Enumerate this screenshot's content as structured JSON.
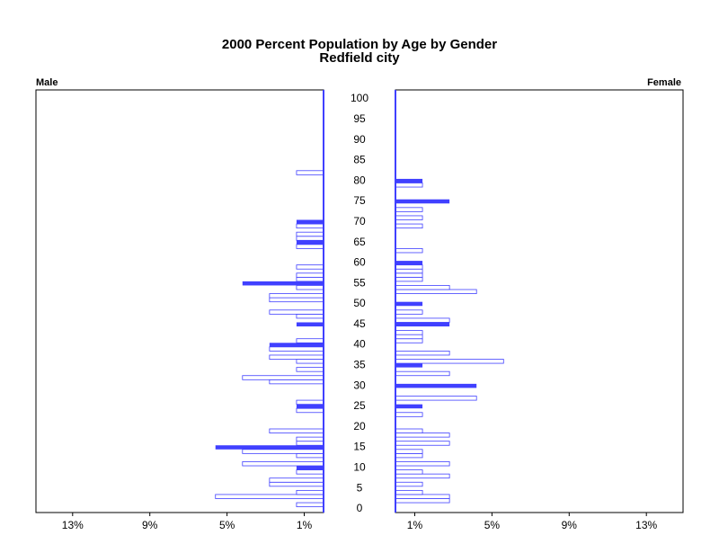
{
  "chart_data": {
    "type": "pyramid",
    "title": "2000 Percent Population by Age by Gender",
    "subtitle": "Redfield city",
    "left_label": "Male",
    "right_label": "Female",
    "categories": [
      0,
      null,
      null,
      null,
      null,
      5,
      null,
      null,
      null,
      null,
      10,
      null,
      null,
      null,
      null,
      15,
      null,
      null,
      null,
      null,
      20,
      null,
      null,
      null,
      null,
      25,
      null,
      null,
      null,
      null,
      30,
      null,
      null,
      null,
      null,
      35,
      null,
      null,
      null,
      null,
      40,
      null,
      null,
      null,
      null,
      45,
      null,
      null,
      null,
      null,
      50,
      null,
      null,
      null,
      null,
      55,
      null,
      null,
      null,
      null,
      60,
      null,
      null,
      null,
      null,
      65,
      null,
      null,
      null,
      null,
      70,
      null,
      null,
      null,
      null,
      75,
      null,
      null,
      null,
      null,
      80,
      null,
      null,
      null,
      null,
      85,
      null,
      null,
      null,
      null,
      90,
      null,
      null,
      null,
      null,
      95,
      null,
      null,
      null,
      null,
      100
    ],
    "series": [
      {
        "name": "Male",
        "color": "#4040ff",
        "values": [
          0,
          1.4,
          0,
          5.6,
          1.4,
          0,
          2.8,
          2.8,
          0,
          1.4,
          1.4,
          4.2,
          0,
          1.4,
          4.2,
          5.6,
          1.4,
          1.4,
          0,
          2.8,
          0,
          0,
          0,
          0,
          1.4,
          1.4,
          1.4,
          0,
          0,
          0,
          0,
          2.8,
          4.2,
          0,
          1.4,
          0,
          1.4,
          2.8,
          0,
          2.8,
          2.8,
          1.4,
          0,
          0,
          0,
          1.4,
          0,
          1.4,
          2.8,
          0,
          0,
          2.8,
          2.8,
          0,
          1.4,
          4.2,
          1.4,
          1.4,
          0,
          1.4,
          0,
          0,
          0,
          0,
          1.4,
          1.4,
          1.4,
          1.4,
          0,
          1.4,
          1.4,
          0,
          0,
          0,
          0,
          0,
          0,
          0,
          0,
          0,
          0,
          0,
          1.4,
          0,
          0,
          0,
          0,
          0,
          0,
          0,
          0,
          0,
          0,
          0,
          0,
          0,
          0,
          0,
          0,
          0,
          0
        ]
      },
      {
        "name": "Female",
        "color": "#4040ff",
        "values": [
          0,
          0,
          2.8,
          2.8,
          1.4,
          0,
          1.4,
          0,
          2.8,
          1.4,
          0,
          2.8,
          0,
          1.4,
          1.4,
          0,
          2.8,
          0,
          2.8,
          1.4,
          0,
          0,
          0,
          1.4,
          0,
          1.4,
          0,
          4.2,
          0,
          0,
          4.2,
          0,
          0,
          2.8,
          0,
          1.4,
          5.6,
          0,
          2.8,
          0,
          0,
          1.4,
          1.4,
          1.4,
          0,
          2.8,
          2.8,
          0,
          1.4,
          0,
          1.4,
          0,
          0,
          4.2,
          2.8,
          0,
          1.4,
          1.4,
          1.4,
          1.4,
          1.4,
          0,
          0,
          1.4,
          0,
          0,
          0,
          0,
          0,
          1.4,
          0,
          1.4,
          0,
          1.4,
          0,
          2.8,
          0,
          0,
          0,
          1.4,
          1.4,
          0,
          0,
          0,
          0,
          0,
          0,
          0,
          0,
          0,
          0,
          0,
          0,
          0,
          0,
          0,
          0,
          0,
          0,
          0,
          0
        ]
      }
    ],
    "filled_step": 5,
    "xlim": [
      0,
      14.9
    ],
    "xticks": [
      {
        "value": 1,
        "label": "1%"
      },
      {
        "value": 5,
        "label": "5%"
      },
      {
        "value": 9,
        "label": "9%"
      },
      {
        "value": 13,
        "label": "13%"
      }
    ]
  }
}
